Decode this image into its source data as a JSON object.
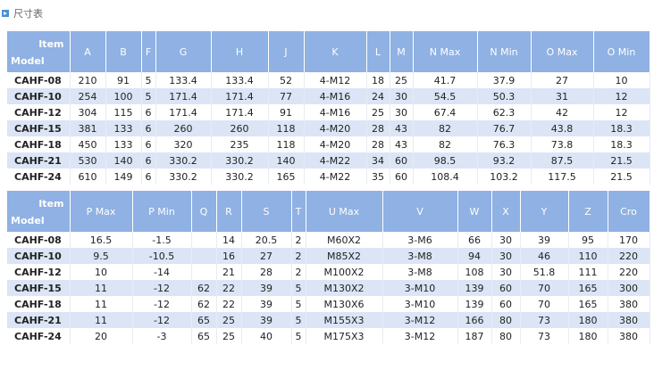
{
  "header": {
    "title": "尺寸表"
  },
  "tables": [
    {
      "corner": {
        "top": "Item",
        "bottom": "Model"
      },
      "columns": [
        "A",
        "B",
        "F",
        "G",
        "H",
        "J",
        "K",
        "L",
        "M",
        "N Max",
        "N Min",
        "O Max",
        "O Min"
      ],
      "rows": [
        {
          "model": "CAHF-08",
          "cells": [
            "210",
            "91",
            "5",
            "133.4",
            "133.4",
            "52",
            "4-M12",
            "18",
            "25",
            "41.7",
            "37.9",
            "27",
            "10"
          ]
        },
        {
          "model": "CAHF-10",
          "cells": [
            "254",
            "100",
            "5",
            "171.4",
            "171.4",
            "77",
            "4-M16",
            "24",
            "30",
            "54.5",
            "50.3",
            "31",
            "12"
          ]
        },
        {
          "model": "CAHF-12",
          "cells": [
            "304",
            "115",
            "6",
            "171.4",
            "171.4",
            "91",
            "4-M16",
            "25",
            "30",
            "67.4",
            "62.3",
            "42",
            "12"
          ]
        },
        {
          "model": "CAHF-15",
          "cells": [
            "381",
            "133",
            "6",
            "260",
            "260",
            "118",
            "4-M20",
            "28",
            "43",
            "82",
            "76.7",
            "43.8",
            "18.3"
          ]
        },
        {
          "model": "CAHF-18",
          "cells": [
            "450",
            "133",
            "6",
            "320",
            "235",
            "118",
            "4-M20",
            "28",
            "43",
            "82",
            "76.3",
            "73.8",
            "18.3"
          ]
        },
        {
          "model": "CAHF-21",
          "cells": [
            "530",
            "140",
            "6",
            "330.2",
            "330.2",
            "140",
            "4-M22",
            "34",
            "60",
            "98.5",
            "93.2",
            "87.5",
            "21.5"
          ]
        },
        {
          "model": "CAHF-24",
          "cells": [
            "610",
            "149",
            "6",
            "330.2",
            "330.2",
            "165",
            "4-M22",
            "35",
            "60",
            "108.4",
            "103.2",
            "117.5",
            "21.5"
          ]
        }
      ]
    },
    {
      "corner": {
        "top": "Item",
        "bottom": "Model"
      },
      "columns": [
        "P Max",
        "P Min",
        "Q",
        "R",
        "S",
        "T",
        "U Max",
        "V",
        "W",
        "X",
        "Y",
        "Z",
        "Cro"
      ],
      "rows": [
        {
          "model": "CAHF-08",
          "cells": [
            "16.5",
            "-1.5",
            null,
            "14",
            "20.5",
            "2",
            "M60X2",
            "3-M6",
            "66",
            "30",
            "39",
            "95",
            "170"
          ]
        },
        {
          "model": "CAHF-10",
          "cells": [
            "9.5",
            "-10.5",
            null,
            "16",
            "27",
            "2",
            "M85X2",
            "3-M8",
            "94",
            "30",
            "46",
            "110",
            "220"
          ]
        },
        {
          "model": "CAHF-12",
          "cells": [
            "10",
            "-14",
            null,
            "21",
            "28",
            "2",
            "M100X2",
            "3-M8",
            "108",
            "30",
            "51.8",
            "111",
            "220"
          ]
        },
        {
          "model": "CAHF-15",
          "cells": [
            "11",
            "-12",
            "62",
            "22",
            "39",
            "5",
            "M130X2",
            "3-M10",
            "139",
            "60",
            "70",
            "165",
            "300"
          ]
        },
        {
          "model": "CAHF-18",
          "cells": [
            "11",
            "-12",
            "62",
            "22",
            "39",
            "5",
            "M130X6",
            "3-M10",
            "139",
            "60",
            "70",
            "165",
            "380"
          ]
        },
        {
          "model": "CAHF-21",
          "cells": [
            "11",
            "-12",
            "65",
            "25",
            "39",
            "5",
            "M155X3",
            "3-M12",
            "166",
            "80",
            "73",
            "180",
            "380"
          ]
        },
        {
          "model": "CAHF-24",
          "cells": [
            "20",
            "-3",
            "65",
            "25",
            "40",
            "5",
            "M175X3",
            "3-M12",
            "187",
            "80",
            "73",
            "180",
            "380"
          ]
        }
      ]
    }
  ]
}
